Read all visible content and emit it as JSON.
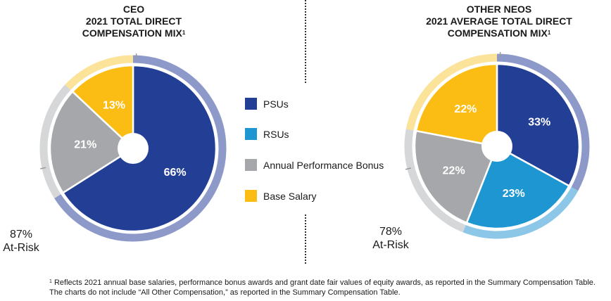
{
  "chart_data": [
    {
      "type": "pie",
      "title_lines": [
        "CEO",
        "2021 TOTAL DIRECT",
        "COMPENSATION MIX"
      ],
      "title_superscript": "1",
      "categories": [
        "PSUs",
        "RSUs",
        "Annual Performance Bonus",
        "Base Salary"
      ],
      "values": [
        66,
        0,
        21,
        13
      ],
      "labels": [
        "66%",
        "",
        "21%",
        "13%"
      ],
      "at_risk_percent": "87%",
      "at_risk_label": "At-Risk"
    },
    {
      "type": "pie",
      "title_lines": [
        "OTHER NEOS",
        "2021 AVERAGE TOTAL DIRECT",
        "COMPENSATION MIX"
      ],
      "title_superscript": "1",
      "categories": [
        "PSUs",
        "RSUs",
        "Annual Performance Bonus",
        "Base Salary"
      ],
      "values": [
        33,
        23,
        22,
        22
      ],
      "labels": [
        "33%",
        "23%",
        "22%",
        "22%"
      ],
      "at_risk_percent": "78%",
      "at_risk_label": "At-Risk"
    }
  ],
  "legend": [
    {
      "label": "PSUs",
      "color": "#233f95"
    },
    {
      "label": "RSUs",
      "color": "#1e96d2"
    },
    {
      "label": "Annual Performance Bonus",
      "color": "#a6a7aa"
    },
    {
      "label": "Base Salary",
      "color": "#fbbd14"
    }
  ],
  "ring_colors": {
    "PSUs": "#8c99c9",
    "RSUs": "#8cc7e8",
    "Annual Performance Bonus": "#d6d7d9",
    "Base Salary": "#fce39a"
  },
  "footnote": {
    "marker": "1",
    "text": " Reflects 2021 annual base salaries, performance bonus awards and grant date fair values of equity awards, as reported in the Summary Compensation Table. The charts do not include “All Other Compensation,” as reported in the Summary Compensation Table."
  }
}
